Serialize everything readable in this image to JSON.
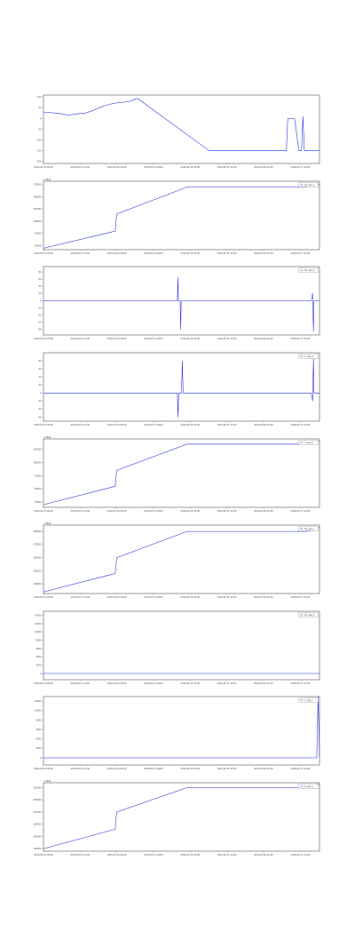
{
  "chart_data": [
    {
      "type": "line",
      "xticks": [
        "2016-05-10 09:00",
        "2016-05-11 15:40",
        "2016-05-12 09:00",
        "2016-05-13 09:00",
        "2016-05-14 03:00",
        "2016-05-15 15:00",
        "2016-05-16 10:00",
        "2016-05-17 01:00"
      ],
      "yticks": [
        "100",
        "50",
        "0",
        "-50",
        "-100",
        "-150",
        "-200"
      ],
      "ylim": [
        -210,
        110
      ],
      "legend": null,
      "offset_label": "",
      "series": [
        {
          "points": [
            [
              0.0,
              30
            ],
            [
              0.025,
              28
            ],
            [
              0.05,
              25
            ],
            [
              0.075,
              20
            ],
            [
              0.09,
              15
            ],
            [
              0.1,
              18
            ],
            [
              0.12,
              22
            ],
            [
              0.15,
              25
            ],
            [
              0.18,
              38
            ],
            [
              0.2,
              50
            ],
            [
              0.22,
              60
            ],
            [
              0.25,
              70
            ],
            [
              0.27,
              74
            ],
            [
              0.3,
              78
            ],
            [
              0.31,
              80
            ],
            [
              0.33,
              90
            ],
            [
              0.34,
              95
            ],
            [
              0.6,
              -150
            ],
            [
              0.88,
              -150
            ],
            [
              0.885,
              0
            ],
            [
              0.9,
              2
            ],
            [
              0.91,
              -2
            ],
            [
              0.925,
              -150
            ],
            [
              0.935,
              -150
            ],
            [
              0.94,
              10
            ],
            [
              0.945,
              -150
            ],
            [
              0.96,
              -150
            ],
            [
              1.0,
              -150
            ]
          ]
        }
      ]
    },
    {
      "type": "line",
      "xticks": [
        "2016-05-10 09:00",
        "2016-05-11 15:40",
        "2016-05-12 09:00",
        "2016-05-13 09:00",
        "2016-05-14 03:00",
        "2016-05-15 15:00",
        "2016-05-16 10:00",
        "2016-05-17 01:00"
      ],
      "yticks": [
        "175000",
        "150000",
        "125000",
        "100000",
        "75000",
        "50000"
      ],
      "ylim": [
        42000,
        182000
      ],
      "legend": "10_ups_a",
      "offset_label": "1.06e9",
      "series": [
        {
          "points": [
            [
              0.0,
              45000
            ],
            [
              0.26,
              80000
            ],
            [
              0.265,
              115000
            ],
            [
              0.52,
              170000
            ],
            [
              0.95,
              170000
            ],
            [
              0.98,
              172000
            ],
            [
              1.0,
              176000
            ]
          ]
        }
      ]
    },
    {
      "type": "line",
      "xticks": [
        "2016-05-10 09:00",
        "2016-05-11 15:40",
        "2016-05-12 09:00",
        "2016-05-13 09:00",
        "2016-05-14 03:00",
        "2016-05-15 15:00",
        "2016-05-16 10:00",
        "2016-05-17 01:00"
      ],
      "yticks": [
        "80",
        "60",
        "40",
        "20",
        "0",
        "-20",
        "-40",
        "-60",
        "-80"
      ],
      "ylim": [
        -95,
        95
      ],
      "legend": "10_ups_b",
      "offset_label": "",
      "series": [
        {
          "points": [
            [
              0.0,
              0
            ],
            [
              0.22,
              0
            ],
            [
              0.485,
              0
            ],
            [
              0.487,
              65
            ],
            [
              0.489,
              0
            ],
            [
              0.495,
              0
            ],
            [
              0.497,
              -80
            ],
            [
              0.499,
              0
            ],
            [
              0.97,
              0
            ],
            [
              0.975,
              20
            ],
            [
              0.978,
              -85
            ],
            [
              0.98,
              0
            ],
            [
              1.0,
              0
            ]
          ]
        }
      ]
    },
    {
      "type": "line",
      "xticks": [
        "2016-05-10 09:00",
        "2016-05-11 15:40",
        "2016-05-12 09:00",
        "2016-05-13 09:00",
        "2016-05-14 03:00",
        "2016-05-15 15:00",
        "2016-05-16 10:00",
        "2016-05-17 01:00"
      ],
      "yticks": [
        "80",
        "60",
        "40",
        "20",
        "0",
        "-20",
        "-40",
        "-60"
      ],
      "ylim": [
        -70,
        100
      ],
      "legend": "7_ups_a",
      "offset_label": "",
      "series": [
        {
          "points": [
            [
              0.0,
              0
            ],
            [
              0.26,
              0
            ],
            [
              0.485,
              0
            ],
            [
              0.487,
              -60
            ],
            [
              0.49,
              0
            ],
            [
              0.5,
              0
            ],
            [
              0.503,
              80
            ],
            [
              0.506,
              0
            ],
            [
              0.97,
              0
            ],
            [
              0.975,
              -20
            ],
            [
              0.978,
              85
            ],
            [
              0.98,
              0
            ],
            [
              1.0,
              0
            ]
          ]
        }
      ]
    },
    {
      "type": "line",
      "xticks": [
        "2016-05-10 09:00",
        "2016-05-11 15:40",
        "2016-05-12 09:00",
        "2016-05-13 09:00",
        "2016-05-14 03:00",
        "2016-05-15 15:00",
        "2016-05-16 10:00",
        "2016-05-17 01:00"
      ],
      "yticks": [
        "125000",
        "100000",
        "75000",
        "50000",
        "25000"
      ],
      "ylim": [
        15000,
        145000
      ],
      "legend": "7_ups_b",
      "offset_label": "1.06e9",
      "series": [
        {
          "points": [
            [
              0.0,
              20000
            ],
            [
              0.26,
              55000
            ],
            [
              0.265,
              85000
            ],
            [
              0.52,
              135000
            ],
            [
              0.95,
              135000
            ],
            [
              0.98,
              137000
            ],
            [
              1.0,
              142000
            ]
          ]
        }
      ]
    },
    {
      "type": "line",
      "xticks": [
        "2016-05-10 09:00",
        "2016-05-11 15:40",
        "2016-05-12 09:00",
        "2016-05-13 09:00",
        "2016-05-14 03:00",
        "2016-05-15 15:00",
        "2016-05-16 10:00",
        "2016-05-17 01:00"
      ],
      "yticks": [
        "200000",
        "175000",
        "150000",
        "125000",
        "100000"
      ],
      "ylim": [
        82000,
        212000
      ],
      "legend": "10_ups_c",
      "offset_label": "1.06e9",
      "series": [
        {
          "points": [
            [
              0.0,
              85000
            ],
            [
              0.26,
              120000
            ],
            [
              0.265,
              150000
            ],
            [
              0.52,
              200000
            ],
            [
              0.95,
              200000
            ],
            [
              0.98,
              202000
            ],
            [
              1.0,
              208000
            ]
          ]
        }
      ]
    },
    {
      "type": "line",
      "xticks": [
        "2016-05-10 09:00",
        "2016-05-11 15:40",
        "2016-05-12 09:00",
        "2016-05-13 09:00",
        "2016-05-14 03:00",
        "2016-05-15 15:00",
        "2016-05-16 10:00",
        "2016-05-17 01:00"
      ],
      "yticks": [
        "14000",
        "12000",
        "10000",
        "8000",
        "6000",
        "4000",
        "2000",
        "0"
      ],
      "ylim": [
        -1500,
        15000
      ],
      "legend": "10_ups_d",
      "offset_label": "",
      "series": [
        {
          "points": [
            [
              0.0,
              0
            ],
            [
              1.0,
              0
            ]
          ]
        }
      ]
    },
    {
      "type": "line",
      "xticks": [
        "2016-05-10 09:00",
        "2016-05-11 15:40",
        "2016-05-12 09:00",
        "2016-05-13 09:00",
        "2016-05-14 03:00",
        "2016-05-15 15:00",
        "2016-05-16 10:00",
        "2016-05-17 01:00"
      ],
      "yticks": [
        "12000",
        "10000",
        "8000",
        "6000",
        "4000",
        "2000",
        "0"
      ],
      "ylim": [
        -1500,
        13000
      ],
      "legend": "7_ups_c",
      "offset_label": "",
      "series": [
        {
          "points": [
            [
              0.0,
              0
            ],
            [
              0.99,
              0
            ],
            [
              0.995,
              13000
            ],
            [
              1.0,
              0
            ]
          ]
        }
      ]
    },
    {
      "type": "line",
      "xticks": [
        "2016-05-10 09:00",
        "2016-05-11 15:40",
        "2016-05-12 09:00",
        "2016-05-13 09:00",
        "2016-05-14 03:00",
        "2016-05-15 15:00",
        "2016-05-16 10:00",
        "2016-05-17 01:00"
      ],
      "yticks": [
        "225000",
        "200000",
        "175000",
        "150000",
        "125000",
        "100000"
      ],
      "ylim": [
        95000,
        235000
      ],
      "legend": "9_ups_a",
      "offset_label": "1.06e9",
      "series": [
        {
          "points": [
            [
              0.0,
              100000
            ],
            [
              0.26,
              140000
            ],
            [
              0.265,
              175000
            ],
            [
              0.52,
              225000
            ],
            [
              0.95,
              225000
            ],
            [
              0.98,
              227000
            ],
            [
              1.0,
              232000
            ]
          ]
        }
      ]
    }
  ]
}
